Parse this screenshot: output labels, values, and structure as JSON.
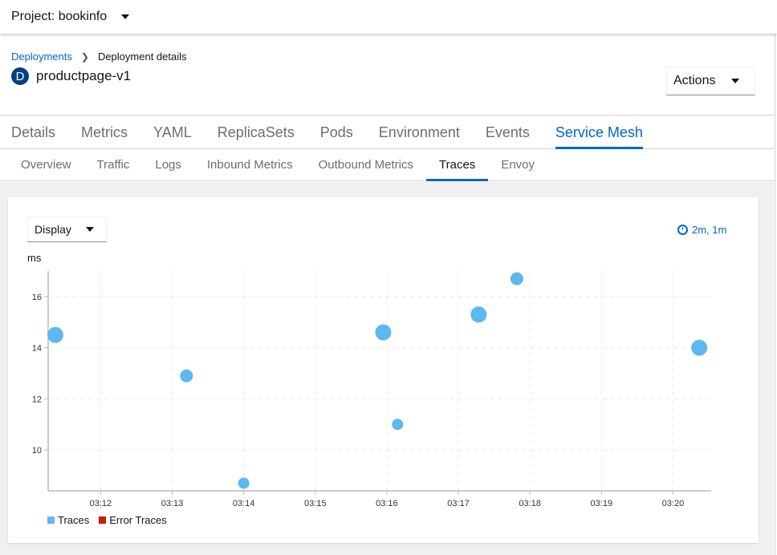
{
  "header": {
    "project_label": "Project: bookinfo"
  },
  "breadcrumb": {
    "parent": "Deployments",
    "current": "Deployment details"
  },
  "resource": {
    "badge": "D",
    "name": "productpage-v1",
    "actions_label": "Actions"
  },
  "tabs": [
    "Details",
    "Metrics",
    "YAML",
    "ReplicaSets",
    "Pods",
    "Environment",
    "Events",
    "Service Mesh"
  ],
  "active_tab": "Service Mesh",
  "subtabs": [
    "Overview",
    "Traffic",
    "Logs",
    "Inbound Metrics",
    "Outbound Metrics",
    "Traces",
    "Envoy"
  ],
  "active_subtab": "Traces",
  "toolbar": {
    "display_label": "Display",
    "range_label": "2m, 1m",
    "range_icon": "clock-icon"
  },
  "chart_data": {
    "type": "scatter",
    "ylabel": "ms",
    "xlabel": "",
    "xticks": [
      "03:12",
      "03:13",
      "03:14",
      "03:15",
      "03:16",
      "03:17",
      "03:18",
      "03:19",
      "03:20"
    ],
    "yticks": [
      10,
      12,
      14,
      16
    ],
    "xlim": [
      "03:11:16",
      "03:20:32"
    ],
    "ylim": [
      8.4,
      17
    ],
    "grid": true,
    "legend_placement": "bottom-left",
    "series": [
      {
        "name": "Traces",
        "color": "#5cb8ef",
        "points": [
          {
            "x": "03:11:22",
            "y": 14.5,
            "size": "large"
          },
          {
            "x": "03:13:12",
            "y": 12.9,
            "size": "medium"
          },
          {
            "x": "03:14:00",
            "y": 8.7,
            "size": "small"
          },
          {
            "x": "03:15:57",
            "y": 14.6,
            "size": "large"
          },
          {
            "x": "03:16:09",
            "y": 11.0,
            "size": "small"
          },
          {
            "x": "03:17:17",
            "y": 15.3,
            "size": "large"
          },
          {
            "x": "03:17:49",
            "y": 16.7,
            "size": "medium"
          },
          {
            "x": "03:20:22",
            "y": 14.0,
            "size": "large"
          }
        ]
      },
      {
        "name": "Error Traces",
        "color": "#c9190b",
        "points": []
      }
    ]
  }
}
